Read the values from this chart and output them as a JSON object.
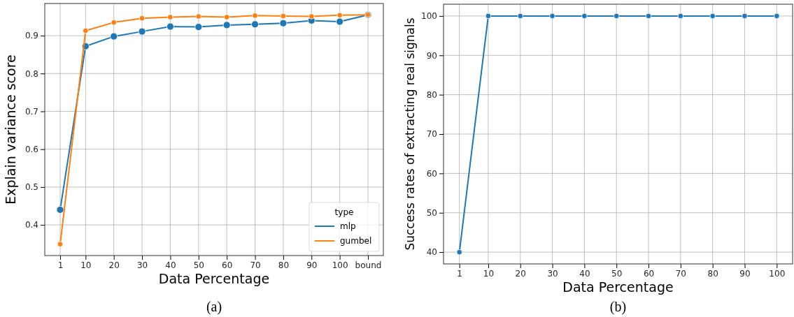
{
  "chart_data": [
    {
      "type": "line",
      "xlabel": "Data Percentage",
      "ylabel": "Explain variance score",
      "annotations": [
        "(a)"
      ],
      "x": [
        1,
        10,
        20,
        30,
        40,
        50,
        60,
        70,
        80,
        90,
        100,
        110
      ],
      "xlim": [
        -4.45,
        115.45
      ],
      "xticks": [
        1,
        10,
        20,
        30,
        40,
        50,
        60,
        70,
        80,
        90,
        100,
        {
          "value": 110,
          "label": "bound"
        }
      ],
      "ylim": [
        0.319,
        0.985
      ],
      "yticks": [
        0.4,
        0.5,
        0.6,
        0.7,
        0.8,
        0.9
      ],
      "grid": true,
      "legend": "bottom right",
      "legend_title": "type",
      "marker": "circle",
      "series": [
        {
          "name": "mlp",
          "color": "#1f77b4",
          "values": [
            0.44,
            0.872,
            0.898,
            0.911,
            0.924,
            0.923,
            0.928,
            0.93,
            0.933,
            0.94,
            0.937,
            0.955
          ]
        },
        {
          "name": "gumbel",
          "color": "#ff7f0e",
          "values": [
            0.349,
            0.913,
            0.935,
            0.946,
            0.949,
            0.951,
            0.949,
            0.953,
            0.952,
            0.951,
            0.954,
            0.955
          ]
        }
      ]
    },
    {
      "type": "line",
      "xlabel": "Data Percentage",
      "ylabel": "Success rates of extracting real signals",
      "annotations": [
        "(b)"
      ],
      "x": [
        1,
        10,
        20,
        30,
        40,
        50,
        60,
        70,
        80,
        90,
        100
      ],
      "xlim": [
        -3.95,
        104.95
      ],
      "xticks": [
        1,
        10,
        20,
        30,
        40,
        50,
        60,
        70,
        80,
        90,
        100
      ],
      "ylim": [
        37,
        103
      ],
      "yticks": [
        40,
        50,
        60,
        70,
        80,
        90,
        100
      ],
      "grid": true,
      "marker": "circle",
      "series": [
        {
          "color": "#1f77b4",
          "values": [
            40,
            100,
            100,
            100,
            100,
            100,
            100,
            100,
            100,
            100,
            100
          ]
        }
      ]
    }
  ]
}
